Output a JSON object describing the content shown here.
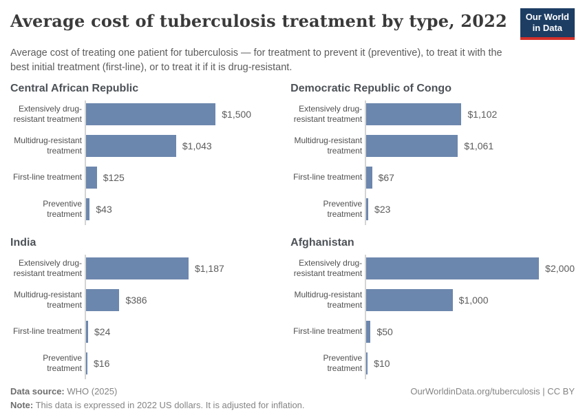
{
  "header": {
    "title": "Average cost of tuberculosis treatment by type, 2022",
    "subtitle": "Average cost of treating one patient for tuberculosis — for treatment to prevent it (preventive), to treat it with the best initial treatment (first-line), or to treat it if it is drug-resistant.",
    "logo": {
      "line1": "Our World",
      "line2": "in Data"
    }
  },
  "chart_data": {
    "type": "bar",
    "orientation": "horizontal",
    "unit": "US$ (2022, inflation-adjusted)",
    "categories": [
      "Extensively drug-resistant treatment",
      "Multidrug-resistant treatment",
      "First-line treatment",
      "Preventive treatment"
    ],
    "xmax": 2000,
    "shared_scale": true,
    "grid": "off",
    "bar_color": "#6c87ad",
    "panels": [
      {
        "title": "Central African Republic",
        "values": [
          1500,
          1043,
          125,
          43
        ],
        "display": [
          "$1,500",
          "$1,043",
          "$125",
          "$43"
        ]
      },
      {
        "title": "Democratic Republic of Congo",
        "values": [
          1102,
          1061,
          67,
          23
        ],
        "display": [
          "$1,102",
          "$1,061",
          "$67",
          "$23"
        ]
      },
      {
        "title": "India",
        "values": [
          1187,
          386,
          24,
          16
        ],
        "display": [
          "$1,187",
          "$386",
          "$24",
          "$16"
        ]
      },
      {
        "title": "Afghanistan",
        "values": [
          2000,
          1000,
          50,
          10
        ],
        "display": [
          "$2,000",
          "$1,000",
          "$50",
          "$10"
        ]
      }
    ]
  },
  "footer": {
    "source_label": "Data source:",
    "source_text": " WHO (2025)",
    "note_label": "Note:",
    "note_text": " This data is expressed in 2022 US dollars. It is adjusted for inflation.",
    "credit": "OurWorldinData.org/tuberculosis | CC BY"
  }
}
